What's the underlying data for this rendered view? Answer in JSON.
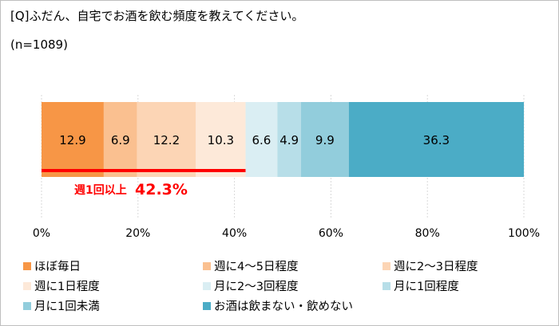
{
  "title": "[Q]ふだん、自宅でお酒を飲む頻度を教えてください。",
  "sample": "(n=1089)",
  "chart_data": {
    "type": "bar",
    "orientation": "horizontal-stacked-100",
    "categories": [
      ""
    ],
    "series": [
      {
        "name": "ほぼ毎日",
        "values": [
          12.9
        ],
        "color": "#F79646"
      },
      {
        "name": "週に4～5日程度",
        "values": [
          6.9
        ],
        "color": "#FAC090"
      },
      {
        "name": "週に2～3日程度",
        "values": [
          12.2
        ],
        "color": "#FCD5B5"
      },
      {
        "name": "週に1日程度",
        "values": [
          10.3
        ],
        "color": "#FDE9D9"
      },
      {
        "name": "月に2～3回程度",
        "values": [
          6.6
        ],
        "color": "#DAEEF3"
      },
      {
        "name": "月に1回程度",
        "values": [
          4.9
        ],
        "color": "#B7DEE8"
      },
      {
        "name": "月に1回未満",
        "values": [
          9.9
        ],
        "color": "#92CDDC"
      },
      {
        "name": "お酒は飲まない・飲めない",
        "values": [
          36.3
        ],
        "color": "#4BACC6"
      }
    ],
    "xlim": [
      0,
      100
    ],
    "xticks": [
      "0%",
      "20%",
      "40%",
      "60%",
      "80%",
      "100%"
    ],
    "grid": true,
    "legend": "bottom",
    "annotation": {
      "label": "週1回以上",
      "value": "42.3%",
      "span": [
        0,
        42.3
      ],
      "color": "#FF0000"
    }
  }
}
